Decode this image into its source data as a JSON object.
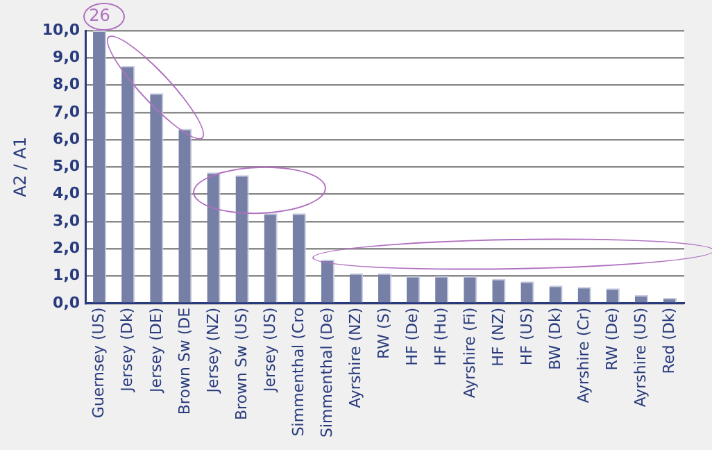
{
  "chart_data": {
    "type": "bar",
    "ylabel": "A2 / A1",
    "categories": [
      "Guernsey (US)",
      "Jersey (Dk)",
      "Jersey (DE)",
      "Brown Sw (DE",
      "Jersey (NZ)",
      "Brown Sw (US)",
      "Jersey (US)",
      "Simmenthal (Cro",
      "Simmenthal (De)",
      "Ayrshire (NZ)",
      "RW (S)",
      "HF (De)",
      "HF (Hu)",
      "Ayrshire (Fi)",
      "HF (NZ)",
      "HF (US)",
      "BW (Dk)",
      "Ayrshire (Cr)",
      "RW (De)",
      "Ayrshire (US)",
      "Red (Dk)"
    ],
    "values": [
      10,
      8.7,
      7.7,
      6.4,
      4.8,
      4.7,
      3.3,
      3.3,
      1.6,
      1.1,
      1.1,
      1.0,
      1.0,
      1.0,
      0.9,
      0.8,
      0.65,
      0.6,
      0.55,
      0.3,
      0.2
    ],
    "color": "#7680a6",
    "ylim": [
      0,
      10
    ],
    "yticks": [
      {
        "value": 0,
        "label": "0,0"
      },
      {
        "value": 1,
        "label": "1,0"
      },
      {
        "value": 2,
        "label": "2,0"
      },
      {
        "value": 3,
        "label": "3,0"
      },
      {
        "value": 4,
        "label": "4,0"
      },
      {
        "value": 5,
        "label": "5,0"
      },
      {
        "value": 6,
        "label": "6,0"
      },
      {
        "value": 7,
        "label": "7,0"
      },
      {
        "value": 8,
        "label": "8,0"
      },
      {
        "value": 9,
        "label": "9,0"
      },
      {
        "value": 10,
        "label": "10,0"
      }
    ],
    "grid": "y",
    "annotations": [
      {
        "text": "26",
        "x": "Guernsey (US)",
        "y": 10
      }
    ]
  }
}
